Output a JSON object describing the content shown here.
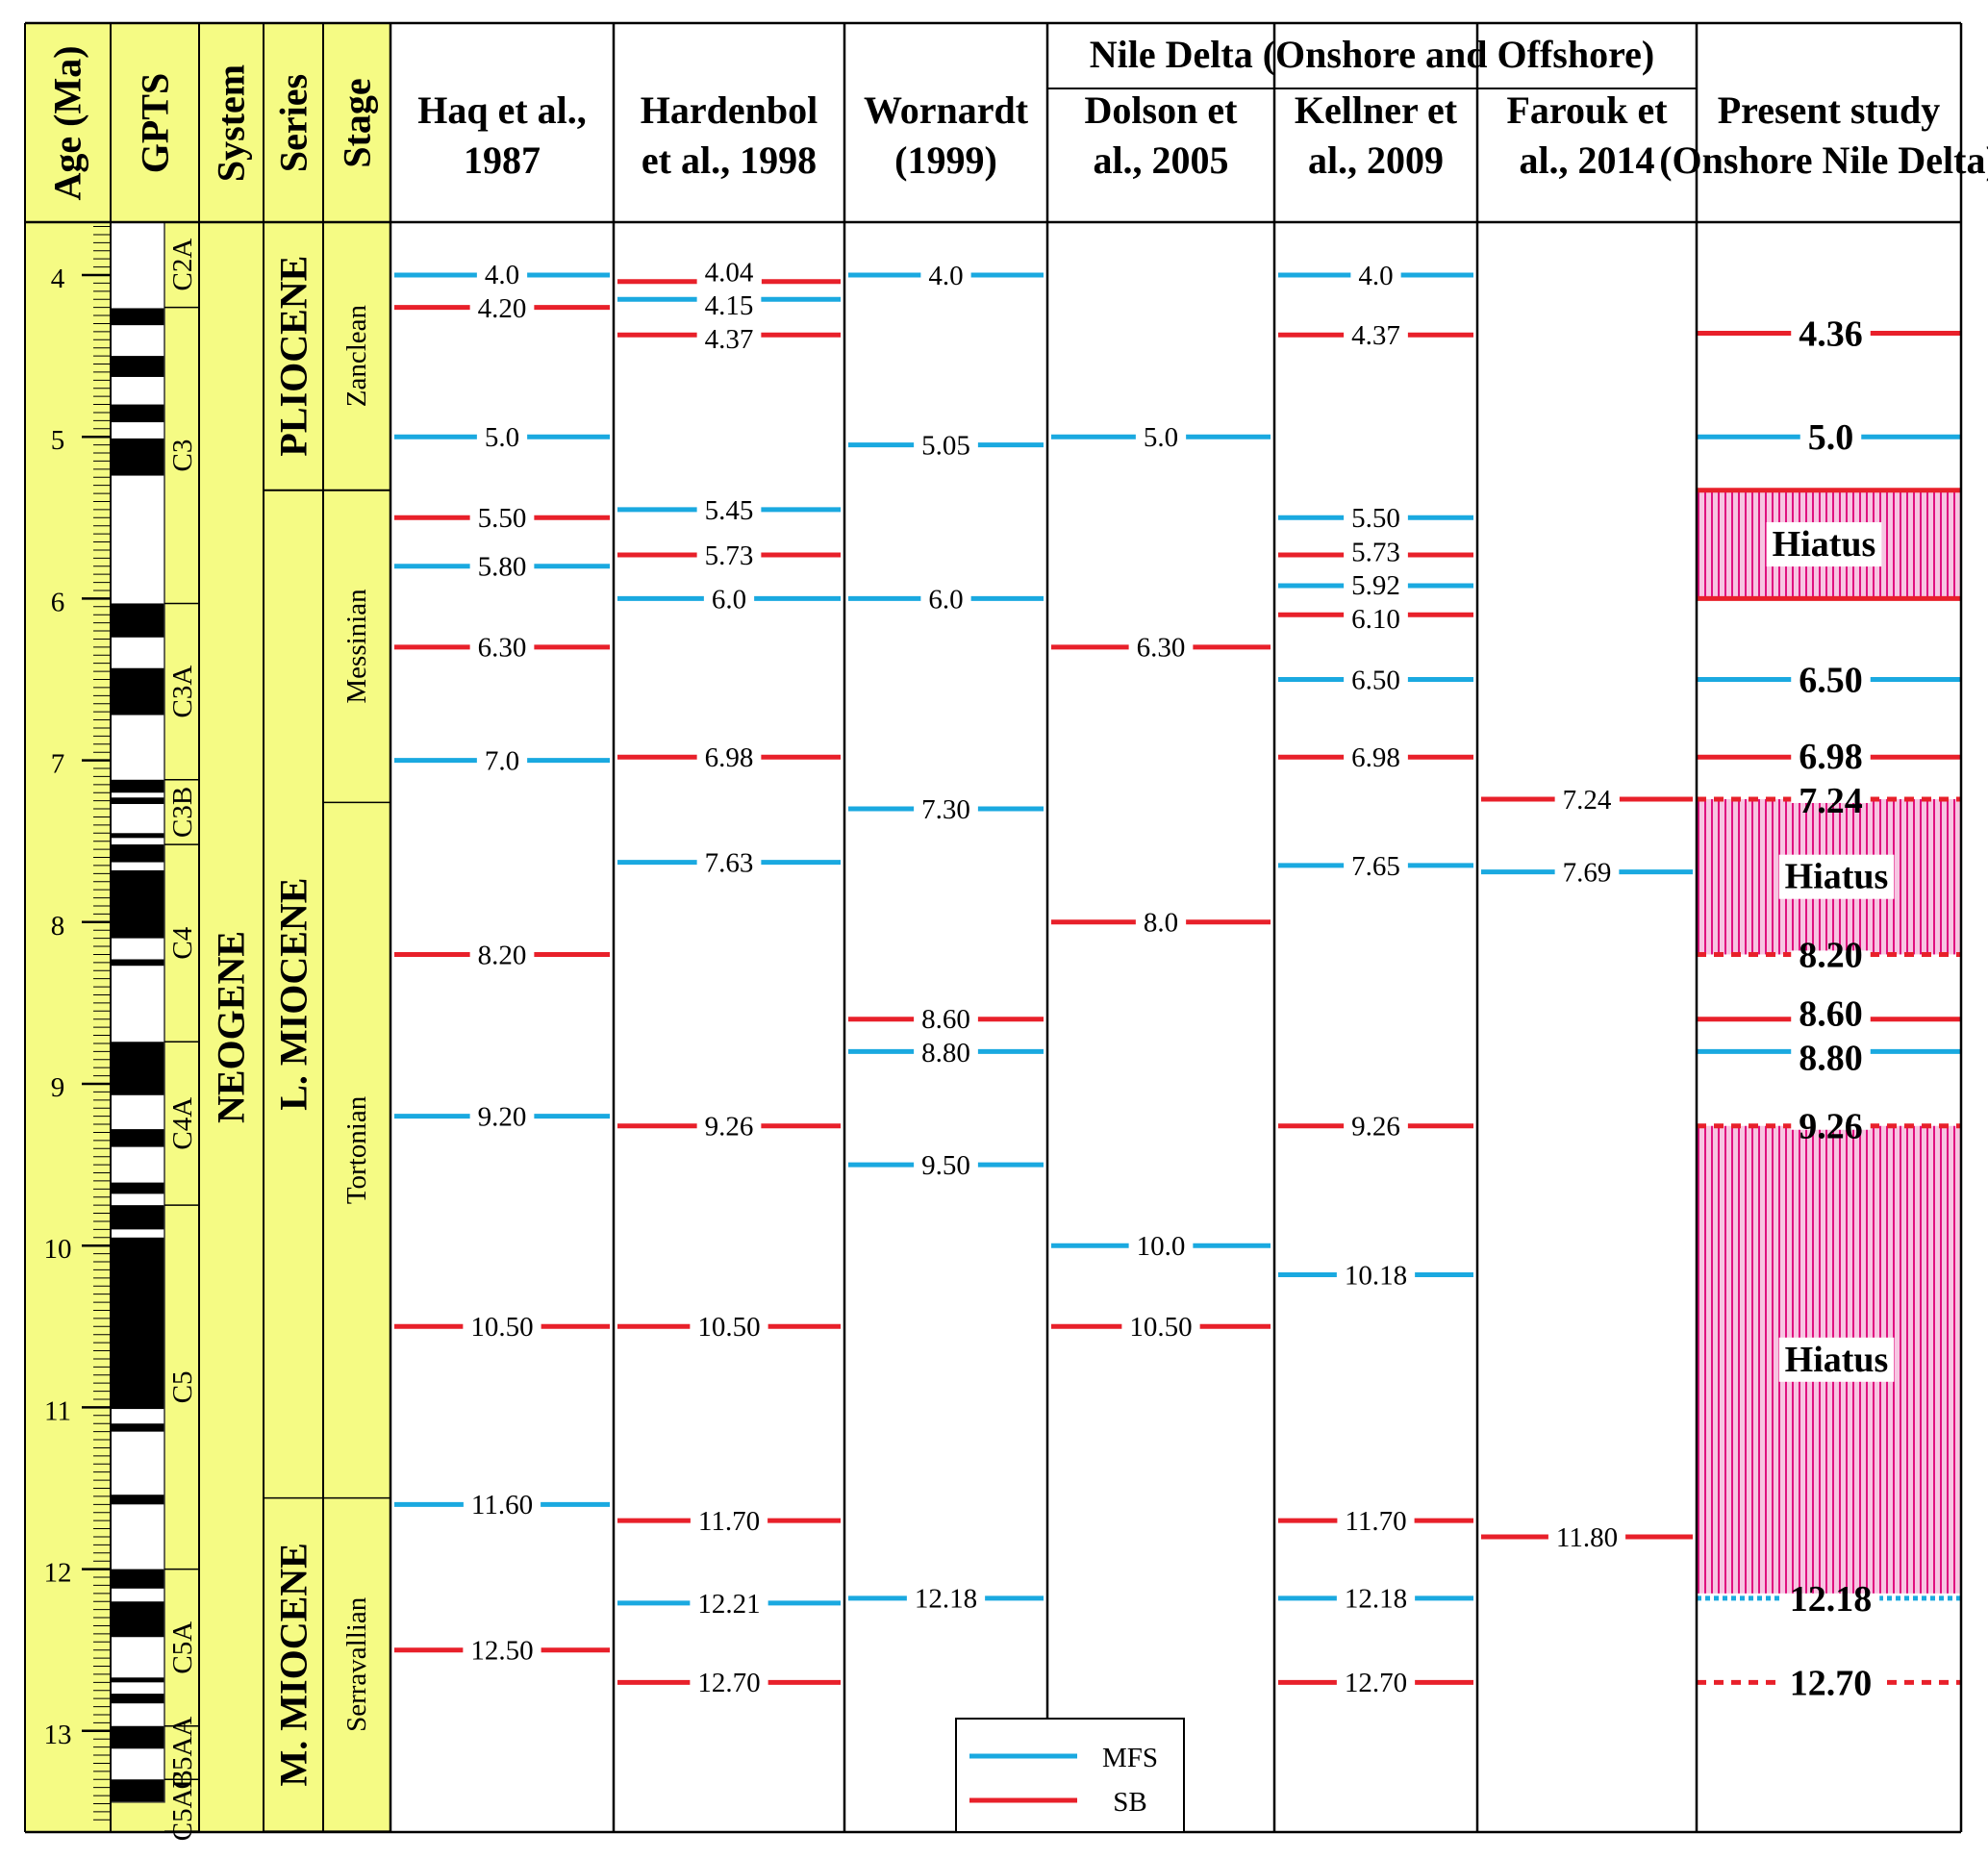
{
  "chart_data": {
    "type": "timeline",
    "age_axis": {
      "label": "Age (Ma)",
      "range": [
        3.67,
        13.62
      ],
      "ticks": [
        "4",
        "5",
        "6",
        "7",
        "8",
        "9",
        "10",
        "11",
        "12",
        "13"
      ]
    },
    "headers": {
      "gpts": "GPTS",
      "system": "System",
      "series": "Series",
      "stage": "Stage",
      "nile_delta": "Nile Delta (Onshore and Offshore)"
    },
    "colors": {
      "MFS": "#1aa9e0",
      "SB": "#e8202a",
      "panel": "#f5fb84",
      "hiatus_fill": "#f7c5e2",
      "hiatus_line": "#e0117f"
    },
    "gpts": {
      "normal_intervals": [
        [
          4.205,
          4.31
        ],
        [
          4.5,
          4.63
        ],
        [
          4.8,
          4.91
        ],
        [
          5.01,
          5.24
        ],
        [
          6.03,
          6.24
        ],
        [
          6.43,
          6.72
        ],
        [
          7.12,
          7.2
        ],
        [
          7.23,
          7.27
        ],
        [
          7.45,
          7.48
        ],
        [
          7.52,
          7.63
        ],
        [
          7.68,
          8.1
        ],
        [
          8.23,
          8.27
        ],
        [
          8.74,
          9.07
        ],
        [
          9.28,
          9.39
        ],
        [
          9.61,
          9.68
        ],
        [
          9.75,
          9.9
        ],
        [
          9.95,
          11.01
        ],
        [
          11.1,
          11.15
        ],
        [
          11.54,
          11.6
        ],
        [
          12.0,
          12.12
        ],
        [
          12.2,
          12.42
        ],
        [
          12.67,
          12.7
        ],
        [
          12.77,
          12.83
        ],
        [
          12.97,
          13.11
        ],
        [
          13.3,
          13.44
        ]
      ],
      "bottom": 13.44,
      "chrons": [
        {
          "name": "C2A",
          "from": 3.67,
          "to": 4.2
        },
        {
          "name": "C3",
          "from": 4.2,
          "to": 6.03
        },
        {
          "name": "C3A",
          "from": 6.03,
          "to": 7.12
        },
        {
          "name": "C3B",
          "from": 7.12,
          "to": 7.52
        },
        {
          "name": "C4",
          "from": 7.52,
          "to": 8.74
        },
        {
          "name": "C4A",
          "from": 8.74,
          "to": 9.75
        },
        {
          "name": "C5",
          "from": 9.75,
          "to": 12.0
        },
        {
          "name": "C5A",
          "from": 12.0,
          "to": 12.97
        },
        {
          "name": "C5AA",
          "from": 12.97,
          "to": 13.3
        },
        {
          "name": "C5AB",
          "from": 13.3,
          "to": 13.62
        }
      ]
    },
    "system": {
      "name": "NEOGENE",
      "from": 3.67,
      "to": 13.62
    },
    "series": [
      {
        "name": "PLIOCENE",
        "from": 3.67,
        "to": 5.33
      },
      {
        "name": "L. MIOCENE",
        "from": 5.33,
        "to": 11.56
      },
      {
        "name": "M. MIOCENE",
        "from": 11.56,
        "to": 13.62
      }
    ],
    "stages": [
      {
        "name": "Zanclean",
        "from": 3.67,
        "to": 5.33
      },
      {
        "name": "Messinian",
        "from": 5.33,
        "to": 7.26
      },
      {
        "name": "Tortonian",
        "from": 7.26,
        "to": 11.56
      },
      {
        "name": "Serravallian",
        "from": 11.56,
        "to": 13.62
      }
    ],
    "columns": [
      {
        "title": [
          "Haq et al.,",
          "1987"
        ],
        "events": [
          {
            "age": 4.0,
            "label": "4.0",
            "type": "MFS"
          },
          {
            "age": 4.2,
            "label": "4.20",
            "type": "SB"
          },
          {
            "age": 5.0,
            "label": "5.0",
            "type": "MFS"
          },
          {
            "age": 5.5,
            "label": "5.50",
            "type": "SB"
          },
          {
            "age": 5.8,
            "label": "5.80",
            "type": "MFS"
          },
          {
            "age": 6.3,
            "label": "6.30",
            "type": "SB"
          },
          {
            "age": 7.0,
            "label": "7.0",
            "type": "MFS"
          },
          {
            "age": 8.2,
            "label": "8.20",
            "type": "SB"
          },
          {
            "age": 9.2,
            "label": "9.20",
            "type": "MFS"
          },
          {
            "age": 10.5,
            "label": "10.50",
            "type": "SB"
          },
          {
            "age": 11.6,
            "label": "11.60",
            "type": "MFS"
          },
          {
            "age": 12.5,
            "label": "12.50",
            "type": "SB"
          }
        ]
      },
      {
        "title": [
          "Hardenbol",
          "et al., 1998"
        ],
        "events": [
          {
            "age": 4.04,
            "label": "4.04",
            "type": "SB"
          },
          {
            "age": 4.15,
            "label": "4.15",
            "type": "MFS"
          },
          {
            "age": 4.37,
            "label": "4.37",
            "type": "SB"
          },
          {
            "age": 5.45,
            "label": "5.45",
            "type": "MFS"
          },
          {
            "age": 5.73,
            "label": "5.73",
            "type": "SB"
          },
          {
            "age": 6.0,
            "label": "6.0",
            "type": "MFS"
          },
          {
            "age": 6.98,
            "label": "6.98",
            "type": "SB"
          },
          {
            "age": 7.63,
            "label": "7.63",
            "type": "MFS"
          },
          {
            "age": 9.26,
            "label": "9.26",
            "type": "SB"
          },
          {
            "age": 10.5,
            "label": "10.50",
            "type": "SB"
          },
          {
            "age": 11.7,
            "label": "11.70",
            "type": "SB"
          },
          {
            "age": 12.21,
            "label": "12.21",
            "type": "MFS"
          },
          {
            "age": 12.7,
            "label": "12.70",
            "type": "SB"
          }
        ]
      },
      {
        "title": [
          "Wornardt",
          "(1999)"
        ],
        "events": [
          {
            "age": 4.0,
            "label": "4.0",
            "type": "MFS"
          },
          {
            "age": 5.05,
            "label": "5.05",
            "type": "MFS"
          },
          {
            "age": 6.0,
            "label": "6.0",
            "type": "MFS"
          },
          {
            "age": 7.3,
            "label": "7.30",
            "type": "MFS"
          },
          {
            "age": 8.6,
            "label": "8.60",
            "type": "SB"
          },
          {
            "age": 8.8,
            "label": "8.80",
            "type": "MFS"
          },
          {
            "age": 9.5,
            "label": "9.50",
            "type": "MFS"
          },
          {
            "age": 12.18,
            "label": "12.18",
            "type": "MFS"
          }
        ]
      },
      {
        "title": [
          "Dolson et",
          "al., 2005"
        ],
        "events": [
          {
            "age": 5.0,
            "label": "5.0",
            "type": "MFS"
          },
          {
            "age": 6.3,
            "label": "6.30",
            "type": "SB"
          },
          {
            "age": 8.0,
            "label": "8.0",
            "type": "SB"
          },
          {
            "age": 10.0,
            "label": "10.0",
            "type": "MFS"
          },
          {
            "age": 10.5,
            "label": "10.50",
            "type": "SB"
          }
        ]
      },
      {
        "title": [
          "Kellner et",
          "al., 2009"
        ],
        "events": [
          {
            "age": 4.0,
            "label": "4.0",
            "type": "MFS"
          },
          {
            "age": 4.37,
            "label": "4.37",
            "type": "SB"
          },
          {
            "age": 5.5,
            "label": "5.50",
            "type": "MFS"
          },
          {
            "age": 5.73,
            "label": "5.73",
            "type": "SB"
          },
          {
            "age": 5.92,
            "label": "5.92",
            "type": "MFS"
          },
          {
            "age": 6.1,
            "label": "6.10",
            "type": "SB"
          },
          {
            "age": 6.5,
            "label": "6.50",
            "type": "MFS"
          },
          {
            "age": 6.98,
            "label": "6.98",
            "type": "SB"
          },
          {
            "age": 7.65,
            "label": "7.65",
            "type": "MFS"
          },
          {
            "age": 9.26,
            "label": "9.26",
            "type": "SB"
          },
          {
            "age": 10.18,
            "label": "10.18",
            "type": "MFS"
          },
          {
            "age": 11.7,
            "label": "11.70",
            "type": "SB"
          },
          {
            "age": 12.18,
            "label": "12.18",
            "type": "MFS"
          },
          {
            "age": 12.7,
            "label": "12.70",
            "type": "SB"
          }
        ]
      },
      {
        "title": [
          "Farouk et",
          "al., 2014"
        ],
        "events": [
          {
            "age": 7.24,
            "label": "7.24",
            "type": "SB"
          },
          {
            "age": 7.69,
            "label": "7.69",
            "type": "MFS"
          },
          {
            "age": 11.8,
            "label": "11.80",
            "type": "SB"
          }
        ]
      },
      {
        "title": [
          "Present study",
          "(Onshore Nile Delta)"
        ],
        "bold": true,
        "events": [
          {
            "age": 4.36,
            "label": "4.36",
            "type": "SB"
          },
          {
            "age": 5.0,
            "label": "5.0",
            "type": "MFS"
          },
          {
            "age": 6.5,
            "label": "6.50",
            "type": "MFS"
          },
          {
            "age": 6.98,
            "label": "6.98",
            "type": "SB"
          },
          {
            "age": 7.24,
            "label": "7.24",
            "type": "SB",
            "style": "dashed"
          },
          {
            "age": 8.2,
            "label": "8.20",
            "type": "SB",
            "style": "dashed"
          },
          {
            "age": 8.6,
            "label": "8.60",
            "type": "SB"
          },
          {
            "age": 8.8,
            "label": "8.80",
            "type": "MFS"
          },
          {
            "age": 9.26,
            "label": "9.26",
            "type": "SB",
            "style": "dashed"
          },
          {
            "age": 12.18,
            "label": "12.18",
            "type": "MFS",
            "style": "dotted"
          },
          {
            "age": 12.7,
            "label": "12.70",
            "type": "SB",
            "style": "dashed"
          }
        ],
        "hiatuses": [
          {
            "from": 5.33,
            "to": 6.0,
            "label": "Hiatus"
          },
          {
            "from": 7.24,
            "to": 8.2,
            "label": "Hiatus"
          },
          {
            "from": 9.26,
            "to": 12.15,
            "label": "Hiatus"
          }
        ]
      }
    ],
    "legend": [
      {
        "type": "MFS",
        "label": "MFS"
      },
      {
        "type": "SB",
        "label": "SB"
      }
    ],
    "legend_placement": "bottom-center"
  }
}
